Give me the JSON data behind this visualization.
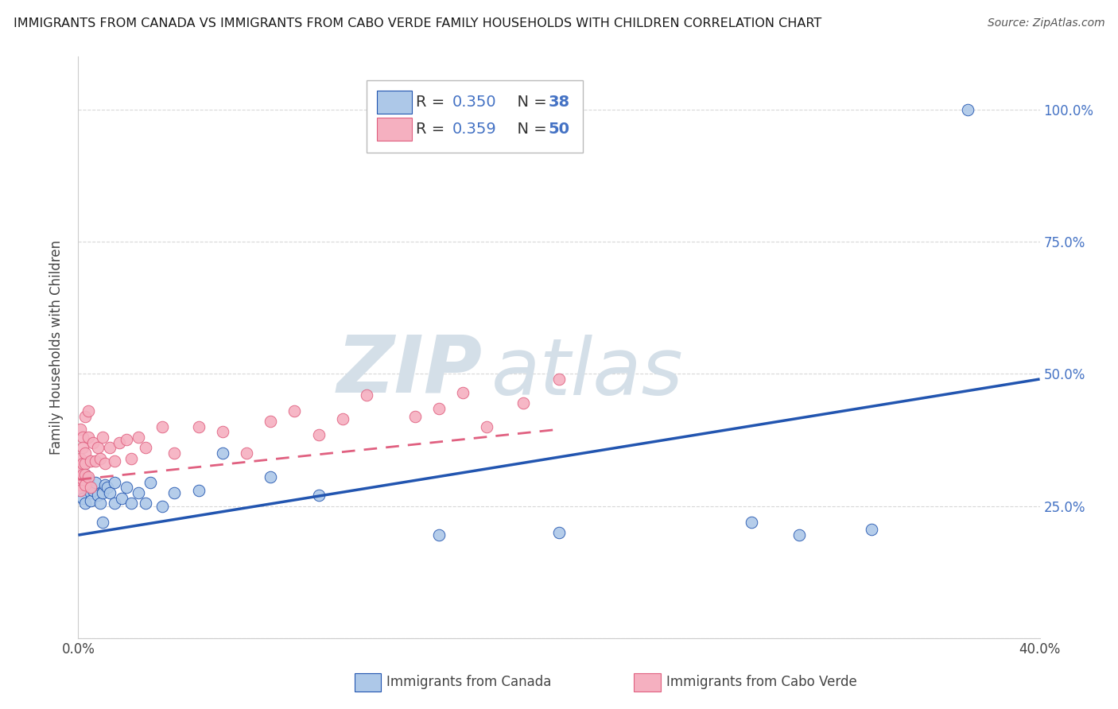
{
  "title": "IMMIGRANTS FROM CANADA VS IMMIGRANTS FROM CABO VERDE FAMILY HOUSEHOLDS WITH CHILDREN CORRELATION CHART",
  "source": "Source: ZipAtlas.com",
  "xlabel_canada": "Immigrants from Canada",
  "xlabel_caboverde": "Immigrants from Cabo Verde",
  "ylabel": "Family Households with Children",
  "xlim": [
    0.0,
    0.4
  ],
  "ylim": [
    0.0,
    1.1
  ],
  "yticks": [
    0.0,
    0.25,
    0.5,
    0.75,
    1.0
  ],
  "xticks": [
    0.0,
    0.1,
    0.2,
    0.3,
    0.4
  ],
  "canada_R": 0.35,
  "canada_N": 38,
  "caboverde_R": 0.359,
  "caboverde_N": 50,
  "canada_color": "#adc8e8",
  "caboverde_color": "#f5b0c0",
  "canada_line_color": "#2255b0",
  "caboverde_line_color": "#e06080",
  "watermark_zip": "ZIP",
  "watermark_atlas": "atlas",
  "watermark_color": "#d4dfe8",
  "grid_color": "#d8d8d8",
  "canada_x": [
    0.001,
    0.001,
    0.002,
    0.002,
    0.003,
    0.003,
    0.004,
    0.005,
    0.005,
    0.006,
    0.007,
    0.008,
    0.009,
    0.01,
    0.01,
    0.011,
    0.012,
    0.013,
    0.015,
    0.015,
    0.018,
    0.02,
    0.022,
    0.025,
    0.028,
    0.03,
    0.035,
    0.04,
    0.05,
    0.06,
    0.08,
    0.1,
    0.15,
    0.2,
    0.28,
    0.3,
    0.33,
    0.37
  ],
  "canada_y": [
    0.305,
    0.28,
    0.295,
    0.265,
    0.31,
    0.255,
    0.3,
    0.275,
    0.26,
    0.28,
    0.295,
    0.27,
    0.255,
    0.275,
    0.22,
    0.29,
    0.285,
    0.275,
    0.295,
    0.255,
    0.265,
    0.285,
    0.255,
    0.275,
    0.255,
    0.295,
    0.25,
    0.275,
    0.28,
    0.35,
    0.305,
    0.27,
    0.195,
    0.2,
    0.22,
    0.195,
    0.205,
    1.0
  ],
  "caboverde_x": [
    0.001,
    0.001,
    0.001,
    0.001,
    0.001,
    0.001,
    0.002,
    0.002,
    0.002,
    0.002,
    0.002,
    0.003,
    0.003,
    0.003,
    0.003,
    0.003,
    0.004,
    0.004,
    0.004,
    0.005,
    0.005,
    0.006,
    0.007,
    0.008,
    0.009,
    0.01,
    0.011,
    0.013,
    0.015,
    0.017,
    0.02,
    0.022,
    0.025,
    0.028,
    0.035,
    0.04,
    0.05,
    0.06,
    0.07,
    0.08,
    0.09,
    0.1,
    0.11,
    0.12,
    0.14,
    0.15,
    0.16,
    0.17,
    0.185,
    0.2
  ],
  "caboverde_y": [
    0.305,
    0.29,
    0.34,
    0.315,
    0.28,
    0.395,
    0.33,
    0.38,
    0.3,
    0.36,
    0.31,
    0.33,
    0.35,
    0.29,
    0.42,
    0.31,
    0.38,
    0.43,
    0.305,
    0.335,
    0.285,
    0.37,
    0.335,
    0.36,
    0.34,
    0.38,
    0.33,
    0.36,
    0.335,
    0.37,
    0.375,
    0.34,
    0.38,
    0.36,
    0.4,
    0.35,
    0.4,
    0.39,
    0.35,
    0.41,
    0.43,
    0.385,
    0.415,
    0.46,
    0.42,
    0.435,
    0.465,
    0.4,
    0.445,
    0.49
  ],
  "canada_line_x0": 0.0,
  "canada_line_x1": 0.4,
  "canada_line_y0": 0.195,
  "canada_line_y1": 0.49,
  "caboverde_line_x0": 0.0,
  "caboverde_line_x1": 0.2,
  "caboverde_line_y0": 0.3,
  "caboverde_line_y1": 0.395
}
